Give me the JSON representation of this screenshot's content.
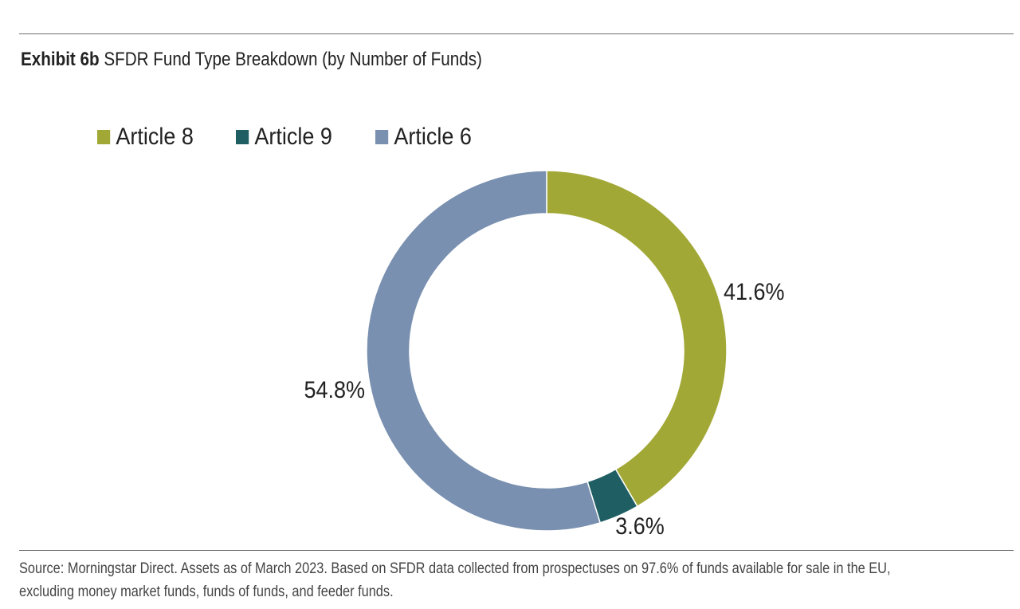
{
  "header": {
    "exhibit_label": "Exhibit 6b",
    "title": "SFDR Fund Type Breakdown (by Number of Funds)"
  },
  "chart_data": {
    "type": "pie",
    "donut": true,
    "categories": [
      "Article 8",
      "Article 9",
      "Article 6"
    ],
    "values": [
      41.6,
      3.6,
      54.8
    ],
    "data_labels": [
      "41.6%",
      "3.6%",
      "54.8%"
    ],
    "colors": [
      "#a2a836",
      "#1f5e63",
      "#7990b0"
    ],
    "legend_position": "top-left",
    "start_angle": "12 o'clock",
    "direction": "clockwise"
  },
  "footer": {
    "source_line1": "Source: Morningstar Direct. Assets as of March 2023. Based on SFDR data collected from prospectuses on 97.6% of funds available for sale in the EU,",
    "source_line2": "excluding money market funds, funds of funds, and feeder funds."
  }
}
